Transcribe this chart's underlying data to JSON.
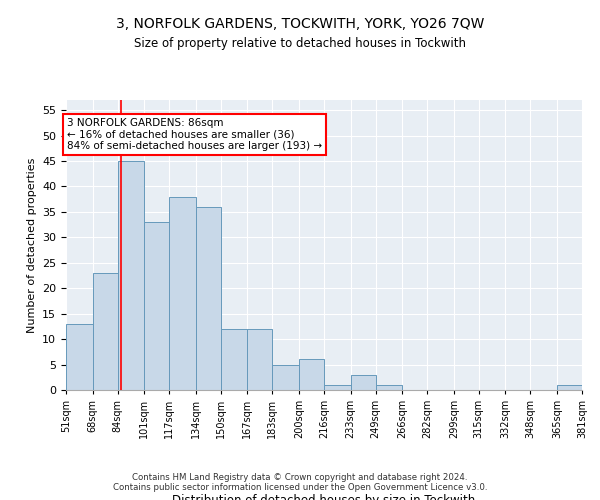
{
  "title1": "3, NORFOLK GARDENS, TOCKWITH, YORK, YO26 7QW",
  "title2": "Size of property relative to detached houses in Tockwith",
  "xlabel": "Distribution of detached houses by size in Tockwith",
  "ylabel": "Number of detached properties",
  "bar_edges": [
    51,
    68,
    84,
    101,
    117,
    134,
    150,
    167,
    183,
    200,
    216,
    233,
    249,
    266,
    282,
    299,
    315,
    332,
    348,
    365,
    381
  ],
  "bar_heights": [
    13,
    23,
    45,
    33,
    38,
    36,
    12,
    12,
    5,
    6,
    1,
    3,
    1,
    0,
    0,
    0,
    0,
    0,
    0,
    1
  ],
  "bar_color": "#c8d8e8",
  "bar_edge_color": "#6699bb",
  "property_line_x": 86,
  "property_line_color": "red",
  "annotation_text": "3 NORFOLK GARDENS: 86sqm\n← 16% of detached houses are smaller (36)\n84% of semi-detached houses are larger (193) →",
  "annotation_box_color": "white",
  "annotation_box_edge_color": "red",
  "ylim": [
    0,
    57
  ],
  "yticks": [
    0,
    5,
    10,
    15,
    20,
    25,
    30,
    35,
    40,
    45,
    50,
    55
  ],
  "background_color": "#e8eef4",
  "footer_text": "Contains HM Land Registry data © Crown copyright and database right 2024.\nContains public sector information licensed under the Open Government Licence v3.0.",
  "tick_labels": [
    "51sqm",
    "68sqm",
    "84sqm",
    "101sqm",
    "117sqm",
    "134sqm",
    "150sqm",
    "167sqm",
    "183sqm",
    "200sqm",
    "216sqm",
    "233sqm",
    "249sqm",
    "266sqm",
    "282sqm",
    "299sqm",
    "315sqm",
    "332sqm",
    "348sqm",
    "365sqm",
    "381sqm"
  ]
}
